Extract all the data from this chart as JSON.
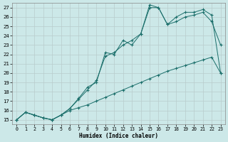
{
  "xlabel": "Humidex (Indice chaleur)",
  "background_color": "#cce8e8",
  "grid_color": "#b0d0d0",
  "line_color": "#1a6e6a",
  "xlim": [
    -0.5,
    23.5
  ],
  "ylim": [
    14.5,
    27.5
  ],
  "xticks": [
    0,
    1,
    2,
    3,
    4,
    5,
    6,
    7,
    8,
    9,
    10,
    11,
    12,
    13,
    14,
    15,
    16,
    17,
    18,
    19,
    20,
    21,
    22,
    23
  ],
  "yticks": [
    15,
    16,
    17,
    18,
    19,
    20,
    21,
    22,
    23,
    24,
    25,
    26,
    27
  ],
  "series1_x": [
    0,
    1,
    2,
    3,
    4,
    5,
    6,
    7,
    8,
    9,
    10,
    11,
    12,
    13,
    14,
    15,
    16,
    17,
    18,
    19,
    20,
    21,
    22,
    23
  ],
  "series1_y": [
    15.0,
    15.8,
    15.5,
    15.2,
    15.0,
    15.5,
    16.0,
    16.3,
    16.6,
    17.0,
    17.4,
    17.8,
    18.2,
    18.6,
    19.0,
    19.4,
    19.8,
    20.2,
    20.5,
    20.8,
    21.1,
    21.4,
    21.7,
    20.0
  ],
  "series2_x": [
    0,
    1,
    2,
    3,
    4,
    5,
    6,
    7,
    8,
    9,
    10,
    11,
    12,
    13,
    14,
    15,
    16,
    17,
    18,
    19,
    20,
    21,
    22,
    23
  ],
  "series2_y": [
    15.0,
    15.8,
    15.5,
    15.2,
    15.0,
    15.5,
    16.2,
    17.2,
    18.2,
    19.2,
    21.8,
    22.2,
    23.0,
    23.5,
    24.2,
    27.0,
    27.0,
    25.2,
    25.5,
    26.0,
    26.2,
    26.5,
    25.5,
    23.0
  ],
  "series3_x": [
    0,
    1,
    2,
    3,
    4,
    5,
    6,
    7,
    8,
    9,
    10,
    11,
    12,
    13,
    14,
    15,
    16,
    17,
    18,
    19,
    20,
    21,
    22,
    23
  ],
  "series3_y": [
    15.0,
    15.8,
    15.5,
    15.2,
    15.0,
    15.5,
    16.2,
    17.3,
    18.5,
    19.0,
    22.2,
    22.0,
    23.5,
    23.0,
    24.2,
    27.3,
    27.0,
    25.2,
    26.0,
    26.5,
    26.5,
    26.8,
    26.2,
    20.0
  ]
}
